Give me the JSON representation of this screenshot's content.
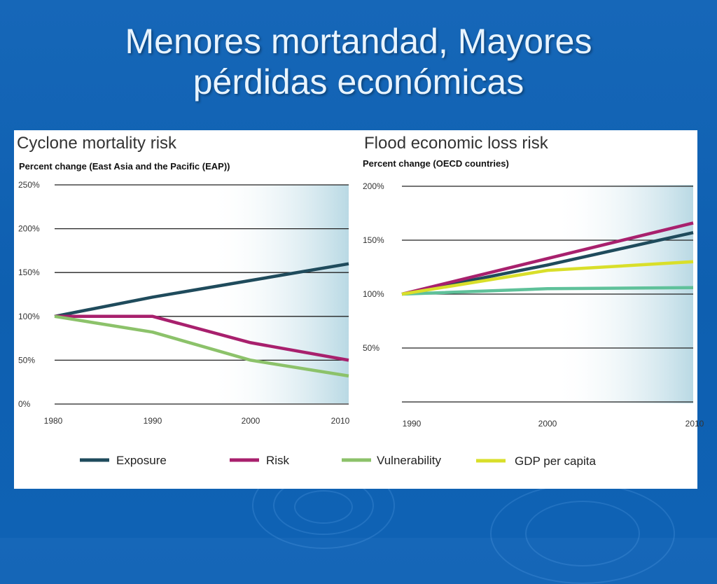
{
  "slide": {
    "title_line1": "Menores mortandad, Mayores",
    "title_line2": "pérdidas económicas"
  },
  "colors": {
    "background": "#1667b8",
    "title": "#e8f4ff",
    "exposure": "#1f4b5c",
    "risk": "#a8206d",
    "vulnerability": "#8cc26a",
    "gdp": "#d9df2a",
    "vulnerability_right": "#5fc19a",
    "shade": "#b9d9e4"
  },
  "legend": [
    {
      "label": "Exposure",
      "color": "#1f4b5c"
    },
    {
      "label": "Risk",
      "color": "#a8206d"
    },
    {
      "label": "Vulnerability",
      "color": "#8cc26a"
    },
    {
      "label": "GDP per capita",
      "color": "#d9df2a"
    }
  ],
  "chart_data": [
    {
      "type": "line",
      "title": "Cyclone mortality risk",
      "subtitle": "Percent change (East Asia and the Pacific (EAP))",
      "ylim": [
        0,
        250
      ],
      "yticks": [
        0,
        50,
        100,
        150,
        200,
        250
      ],
      "ytick_labels": [
        "0%",
        "50%",
        "100%",
        "150%",
        "200%",
        "250%"
      ],
      "xlim": [
        1980,
        2010
      ],
      "xticks": [
        "1980",
        "1990",
        "2000",
        "2010"
      ],
      "grid": true,
      "series": [
        {
          "name": "Exposure",
          "x": [
            1980,
            1990,
            2000,
            2010
          ],
          "values": [
            100,
            122,
            141,
            160
          ],
          "color": "#1f4b5c"
        },
        {
          "name": "Risk",
          "x": [
            1980,
            1990,
            2000,
            2010
          ],
          "values": [
            100,
            100,
            70,
            50
          ],
          "color": "#a8206d"
        },
        {
          "name": "Vulnerability",
          "x": [
            1980,
            1990,
            2000,
            2010
          ],
          "values": [
            100,
            82,
            50,
            32
          ],
          "color": "#8cc26a"
        }
      ]
    },
    {
      "type": "line",
      "title": "Flood economic loss risk",
      "subtitle": "Percent change (OECD countries)",
      "ylim": [
        0,
        200
      ],
      "yticks": [
        50,
        100,
        150,
        200
      ],
      "ytick_labels": [
        "50%",
        "100%",
        "150%",
        "200%"
      ],
      "xlim": [
        1990,
        2010
      ],
      "xticks": [
        "1990",
        "2000",
        "2010"
      ],
      "grid": true,
      "series": [
        {
          "name": "Exposure",
          "x": [
            1990,
            2000,
            2010
          ],
          "values": [
            100,
            127,
            157
          ],
          "color": "#1f4b5c"
        },
        {
          "name": "Risk",
          "x": [
            1990,
            2000,
            2010
          ],
          "values": [
            100,
            133,
            166
          ],
          "color": "#a8206d"
        },
        {
          "name": "Vulnerability",
          "x": [
            1990,
            2000,
            2010
          ],
          "values": [
            100,
            105,
            106
          ],
          "color": "#5fc19a"
        },
        {
          "name": "GDP per capita",
          "x": [
            1990,
            2000,
            2010
          ],
          "values": [
            100,
            122,
            130
          ],
          "color": "#d9df2a"
        }
      ]
    }
  ]
}
